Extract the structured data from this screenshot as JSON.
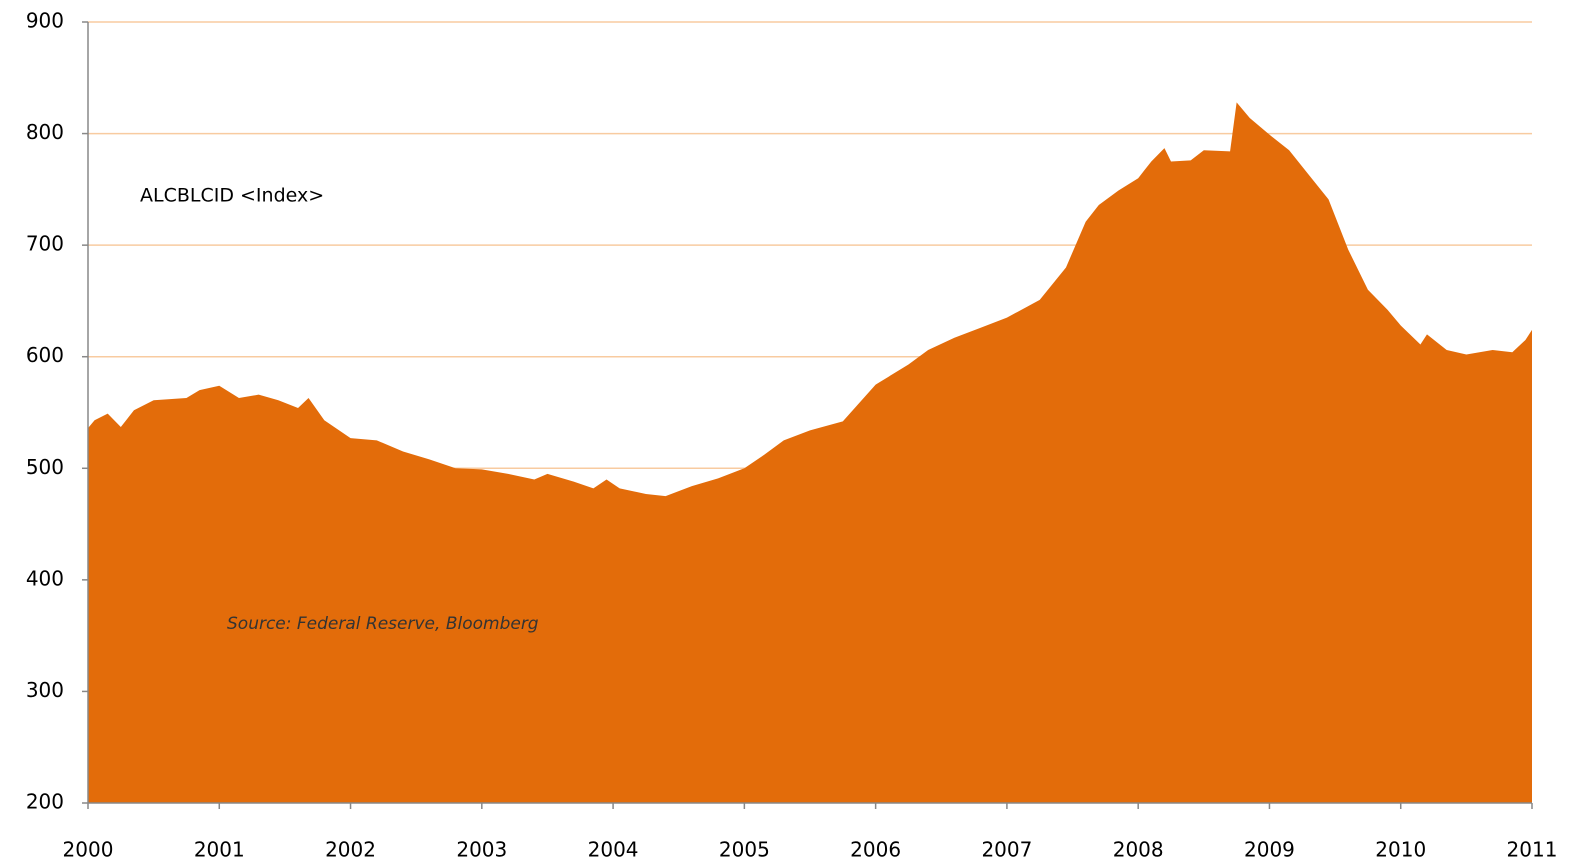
{
  "chart_data": {
    "type": "area",
    "color": "#e36c0a",
    "grid": true,
    "grid_color": "#f8cba0",
    "annotations": [
      "ALCBLCID <Index>",
      "Source: Federal Reserve, Bloomberg"
    ],
    "xlim": [
      2000,
      2011
    ],
    "xticks": [
      2000,
      2001,
      2002,
      2003,
      2004,
      2005,
      2006,
      2007,
      2008,
      2009,
      2010,
      2011
    ],
    "ylim": [
      200,
      900
    ],
    "yticks": [
      200,
      300,
      400,
      500,
      600,
      700,
      800,
      900
    ],
    "x": [
      2000.0,
      2000.05,
      2000.15,
      2000.25,
      2000.35,
      2000.5,
      2000.75,
      2000.85,
      2001.0,
      2001.15,
      2001.3,
      2001.45,
      2001.6,
      2001.68,
      2001.8,
      2002.0,
      2002.2,
      2002.4,
      2002.6,
      2002.8,
      2003.0,
      2003.2,
      2003.4,
      2003.5,
      2003.7,
      2003.85,
      2003.95,
      2004.05,
      2004.25,
      2004.4,
      2004.6,
      2004.8,
      2005.0,
      2005.15,
      2005.3,
      2005.5,
      2005.75,
      2006.0,
      2006.25,
      2006.4,
      2006.6,
      2006.8,
      2007.0,
      2007.25,
      2007.45,
      2007.6,
      2007.7,
      2007.85,
      2008.0,
      2008.1,
      2008.2,
      2008.25,
      2008.4,
      2008.5,
      2008.7,
      2008.75,
      2008.85,
      2009.0,
      2009.15,
      2009.3,
      2009.45,
      2009.6,
      2009.75,
      2009.9,
      2010.0,
      2010.15,
      2010.2,
      2010.35,
      2010.5,
      2010.7,
      2010.85,
      2010.95,
      2011.0
    ],
    "series": [
      {
        "name": "ALCBLCID",
        "color": "#e36c0a",
        "values": [
          536,
          543,
          549,
          537,
          552,
          561,
          563,
          570,
          574,
          563,
          566,
          561,
          554,
          563,
          543,
          527,
          525,
          515,
          508,
          500,
          499,
          495,
          490,
          495,
          488,
          482,
          490,
          482,
          477,
          475,
          484,
          491,
          500,
          512,
          525,
          534,
          542,
          575,
          593,
          606,
          617,
          626,
          635,
          651,
          680,
          721,
          736,
          749,
          760,
          775,
          787,
          775,
          776,
          785,
          784,
          828,
          814,
          799,
          785,
          763,
          741,
          696,
          660,
          642,
          628,
          611,
          620,
          606,
          602,
          606,
          604,
          615,
          624
        ]
      }
    ]
  }
}
